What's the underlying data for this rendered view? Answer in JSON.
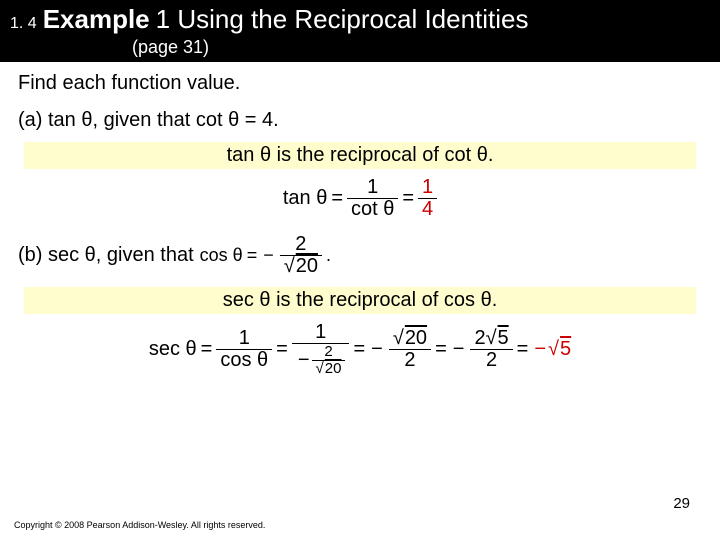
{
  "header": {
    "section_num": "1. 4",
    "example_word": "Example",
    "example_num_title": "1 Using the Reciprocal Identities",
    "page_ref": "(page 31)"
  },
  "content": {
    "instruction": "Find each function value.",
    "part_a": "(a)  tan θ, given that cot θ = 4.",
    "highlight_a": "tan θ is the reciprocal of cot θ.",
    "part_b_prefix": "(b)  sec θ, given that",
    "highlight_b": "sec θ is the reciprocal of cos θ."
  },
  "formula_a": {
    "lhs": "tan θ",
    "eq": "=",
    "frac1_num": "1",
    "frac1_den": "cot θ",
    "frac2_num": "1",
    "frac2_den": "4",
    "colors": {
      "num2": "#cc0000",
      "den2": "#cc0000"
    }
  },
  "formula_b_given": {
    "lhs": "cos θ",
    "eq": "=",
    "neg": "−",
    "num": "2",
    "den_sqrt": "20",
    "end": "."
  },
  "formula_b_chain": {
    "lhs": "sec θ",
    "eq": "=",
    "f1_num": "1",
    "f1_den": "cos θ",
    "f2_num": "1",
    "f2_neg": "−",
    "f2_den_num": "2",
    "f2_den_sqrt": "20",
    "f3_neg": "−",
    "f3_num_sqrt": "20",
    "f3_den": "2",
    "f4_neg": "−",
    "f4_num_coeff": "2",
    "f4_num_sqrt": "5",
    "f4_den": "2",
    "rhs_neg": "−",
    "rhs_sqrt": "5",
    "rhs_color": "#cc0000"
  },
  "page_num": "29",
  "copyright": "Copyright © 2008 Pearson Addison-Wesley.  All rights reserved."
}
